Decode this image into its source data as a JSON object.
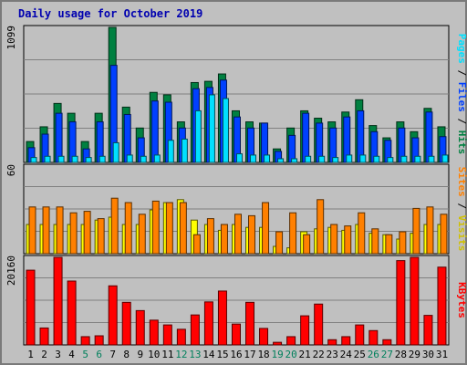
{
  "chart_data": [
    {
      "type": "bar",
      "title": "Daily usage for October 2019",
      "panel": "pages-files-hits",
      "max_label": "1099",
      "ylim": [
        0,
        1099
      ],
      "categories": [
        "1",
        "2",
        "3",
        "4",
        "5",
        "6",
        "7",
        "8",
        "9",
        "10",
        "11",
        "12",
        "13",
        "14",
        "15",
        "16",
        "17",
        "18",
        "19",
        "20",
        "21",
        "22",
        "23",
        "24",
        "25",
        "26",
        "27",
        "28",
        "29",
        "30",
        "31"
      ],
      "weekend_days": [
        "5",
        "6",
        "12",
        "13",
        "19",
        "20",
        "26",
        "27"
      ],
      "series": [
        {
          "name": "Hits",
          "color": "#008040",
          "values": [
            170,
            290,
            480,
            400,
            170,
            400,
            1099,
            450,
            280,
            570,
            550,
            330,
            650,
            660,
            720,
            420,
            330,
            320,
            110,
            280,
            420,
            360,
            330,
            410,
            510,
            300,
            200,
            330,
            250,
            440,
            290
          ]
        },
        {
          "name": "Files",
          "color": "#0040ff",
          "values": [
            120,
            230,
            400,
            330,
            110,
            330,
            790,
            390,
            200,
            500,
            490,
            280,
            600,
            610,
            670,
            370,
            280,
            320,
            90,
            220,
            400,
            320,
            280,
            370,
            420,
            250,
            180,
            280,
            200,
            410,
            210
          ]
        },
        {
          "name": "Pages",
          "color": "#00e0ff",
          "values": [
            40,
            50,
            50,
            50,
            40,
            50,
            160,
            60,
            50,
            60,
            180,
            190,
            420,
            550,
            520,
            70,
            60,
            60,
            30,
            30,
            50,
            50,
            40,
            60,
            60,
            50,
            40,
            50,
            50,
            50,
            60
          ]
        }
      ],
      "side_labels": {
        "pages": "Pages",
        "files": "Files",
        "hits": "Hits",
        "sep": " / "
      }
    },
    {
      "type": "bar",
      "panel": "visits-sites",
      "max_label": "60",
      "ylim": [
        0,
        60
      ],
      "categories": [
        "1",
        "2",
        "3",
        "4",
        "5",
        "6",
        "7",
        "8",
        "9",
        "10",
        "11",
        "12",
        "13",
        "14",
        "15",
        "16",
        "17",
        "18",
        "19",
        "20",
        "21",
        "22",
        "23",
        "24",
        "25",
        "26",
        "27",
        "28",
        "29",
        "30",
        "31"
      ],
      "series": [
        {
          "name": "Visits",
          "color": "#ffff00",
          "values": [
            20,
            20,
            20,
            20,
            20,
            23,
            25,
            20,
            20,
            30,
            35,
            37,
            23,
            20,
            16,
            20,
            18,
            18,
            5,
            4,
            15,
            17,
            18,
            16,
            20,
            14,
            13,
            10,
            14,
            20,
            20
          ]
        },
        {
          "name": "Sites",
          "color": "#ff8000",
          "values": [
            32,
            32,
            32,
            28,
            29,
            24,
            38,
            35,
            27,
            36,
            35,
            35,
            13,
            24,
            20,
            27,
            26,
            35,
            15,
            28,
            13,
            37,
            20,
            19,
            28,
            17,
            13,
            15,
            31,
            32,
            27
          ]
        }
      ],
      "side_labels": {
        "sites": "Sites",
        "visits": "Visits",
        "sep": " / "
      }
    },
    {
      "type": "bar",
      "panel": "kbytes",
      "max_label": "20160",
      "ylim": [
        0,
        20160
      ],
      "categories": [
        "1",
        "2",
        "3",
        "4",
        "5",
        "6",
        "7",
        "8",
        "9",
        "10",
        "11",
        "12",
        "13",
        "14",
        "15",
        "16",
        "17",
        "18",
        "19",
        "20",
        "21",
        "22",
        "23",
        "24",
        "25",
        "26",
        "27",
        "28",
        "29",
        "30",
        "31"
      ],
      "series": [
        {
          "name": "KBytes",
          "color": "#ff0000",
          "values": [
            17200,
            3900,
            20160,
            14700,
            1900,
            2100,
            13600,
            9800,
            7900,
            5700,
            4600,
            3600,
            6900,
            9900,
            12400,
            4800,
            9800,
            3800,
            600,
            1900,
            6700,
            9400,
            1200,
            1900,
            4600,
            3300,
            1200,
            19400,
            20160,
            6800,
            17900
          ]
        }
      ],
      "side_labels": {
        "kbytes": "KBytes"
      }
    }
  ]
}
